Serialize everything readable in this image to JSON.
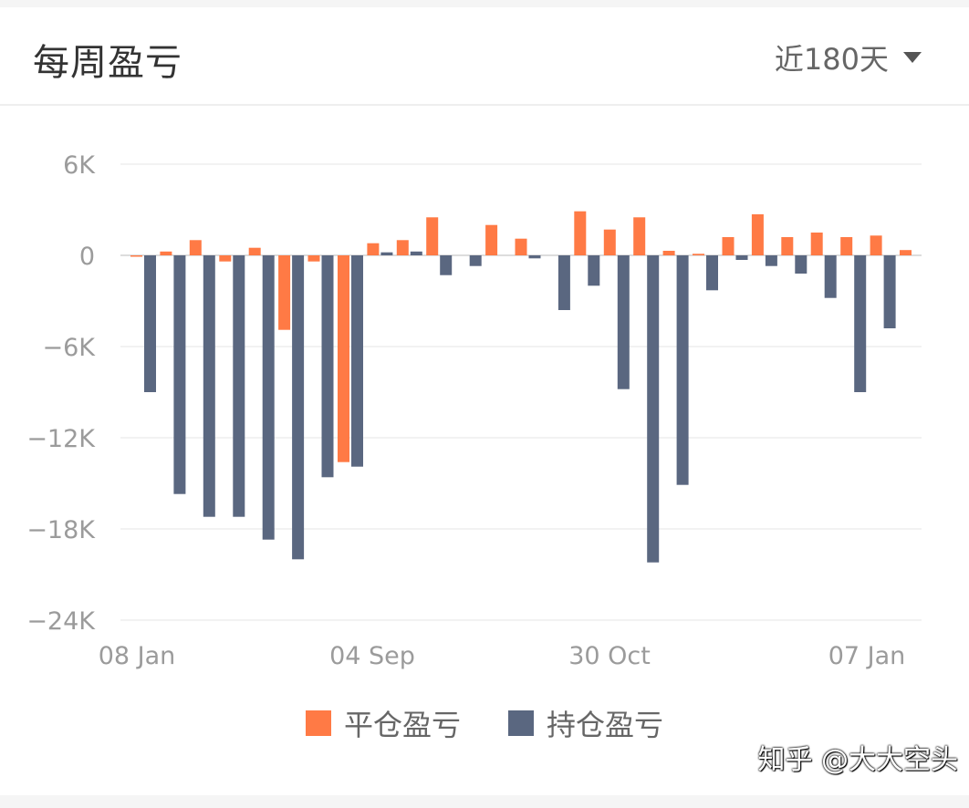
{
  "header": {
    "title": "每周盈亏",
    "range_label": "近180天"
  },
  "colors": {
    "closed": "#ff7a45",
    "holding": "#5a6780",
    "grid": "#eeeeee",
    "axis_text": "#9b9b9b"
  },
  "chart_data": {
    "type": "bar",
    "y_ticks": [
      "6K",
      "0",
      "−6K",
      "−12K",
      "−18K",
      "−24K"
    ],
    "y_tick_values": [
      6000,
      0,
      -6000,
      -12000,
      -18000,
      -24000
    ],
    "ylim": [
      -24000,
      6000
    ],
    "x_tick_labels": [
      "08 Jan",
      "04 Sep",
      "30 Oct",
      "07 Jan"
    ],
    "x_tick_indices": [
      0,
      8,
      16,
      25
    ],
    "series": [
      {
        "name": "平仓盈亏",
        "values": [
          -80,
          250,
          1000,
          -400,
          500,
          -4900,
          -400,
          -13600,
          800,
          1000,
          2500,
          0,
          2000,
          1100,
          0,
          2900,
          1700,
          2500,
          300,
          100,
          1200,
          2700,
          1200,
          1500,
          1200,
          1300,
          350
        ]
      },
      {
        "name": "持仓盈亏",
        "values": [
          -9000,
          -15700,
          -17200,
          -17200,
          -18700,
          -20000,
          -14600,
          -13900,
          200,
          250,
          -1300,
          -700,
          0,
          -200,
          -3600,
          -2000,
          -8800,
          -20200,
          -15100,
          -2300,
          -300,
          -700,
          -1200,
          -2800,
          -9000,
          -4800,
          0
        ]
      }
    ]
  },
  "legend": {
    "closed_label": "平仓盈亏",
    "holding_label": "持仓盈亏"
  },
  "watermark": "知乎 @大大空头"
}
